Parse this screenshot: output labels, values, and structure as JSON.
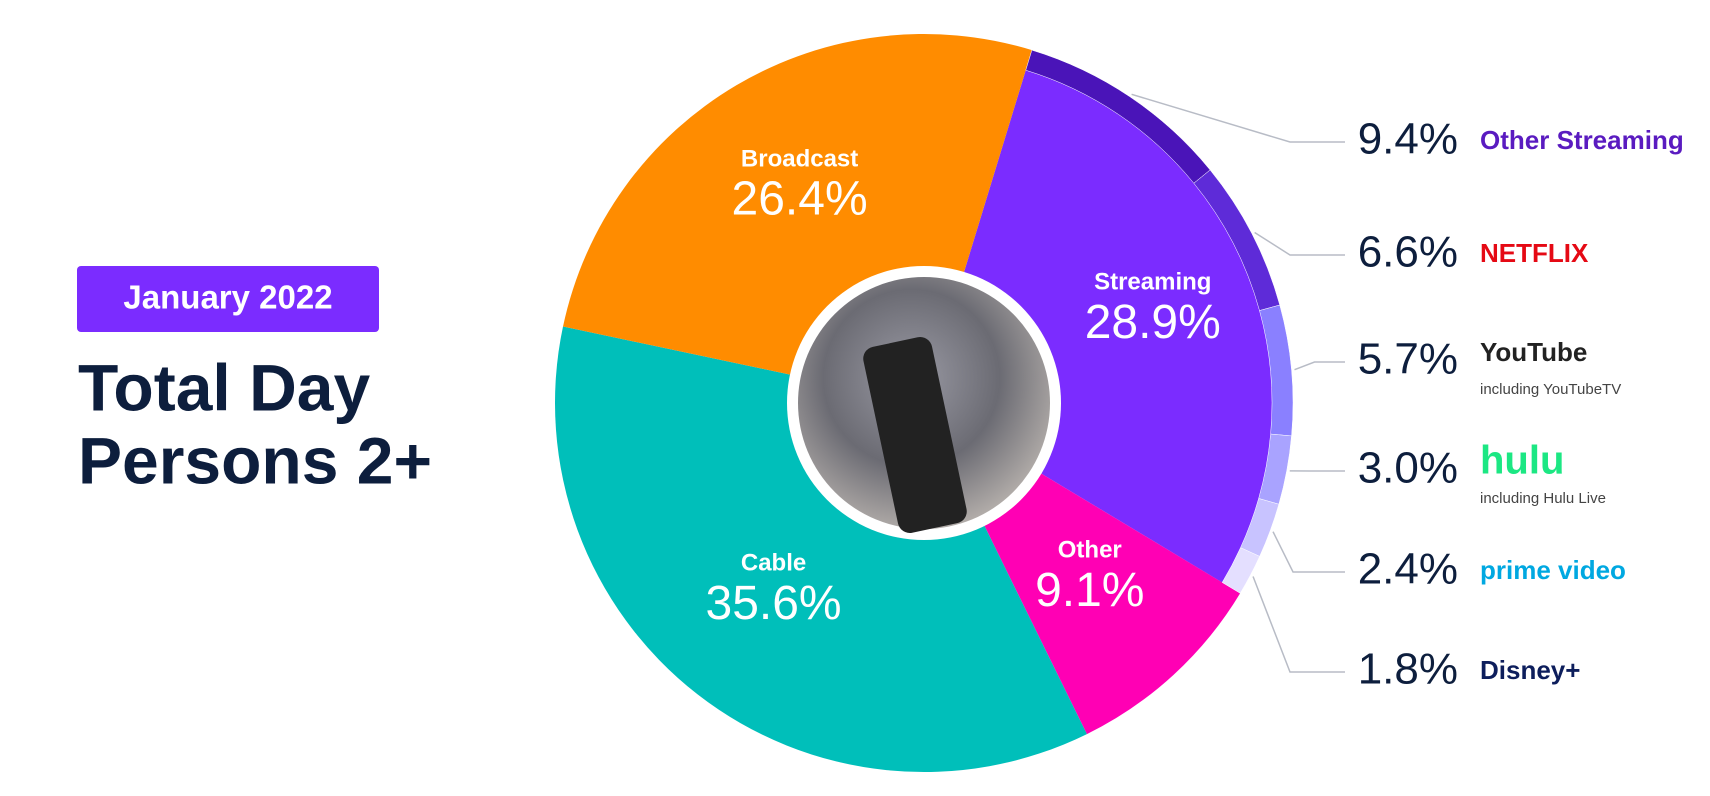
{
  "chart_data": {
    "type": "pie",
    "badge": "January 2022",
    "title_lines": [
      "Total Day",
      "Persons 2+"
    ],
    "categories": [
      "Streaming",
      "Other",
      "Cable",
      "Broadcast"
    ],
    "values": [
      28.9,
      9.1,
      35.6,
      26.4
    ],
    "value_labels": [
      "28.9%",
      "9.1%",
      "35.6%",
      "26.4%"
    ],
    "colors": [
      "#7b2cff",
      "#ff00b4",
      "#00bfba",
      "#ff8c00"
    ],
    "breakdown": {
      "categories": [
        "Other Streaming",
        "NETFLIX",
        "YouTube",
        "hulu",
        "prime video",
        "Disney+"
      ],
      "values": [
        9.4,
        6.6,
        5.7,
        3.0,
        2.4,
        1.8
      ],
      "value_labels": [
        "9.4%",
        "6.6%",
        "5.7%",
        "3.0%",
        "2.4%",
        "1.8%"
      ],
      "notes": [
        null,
        null,
        "including YouTubeTV",
        "including Hulu Live",
        null,
        null
      ],
      "colors": [
        "#4a14b8",
        "#5e2bd8",
        "#8a80ff",
        "#a9a3ff",
        "#c8c3ff",
        "#e4dfff"
      ],
      "label_colors": [
        "#5a1bc0",
        "#e50914",
        "#222222",
        "#1ce783",
        "#00a8e1",
        "#0d1e5c"
      ]
    }
  }
}
